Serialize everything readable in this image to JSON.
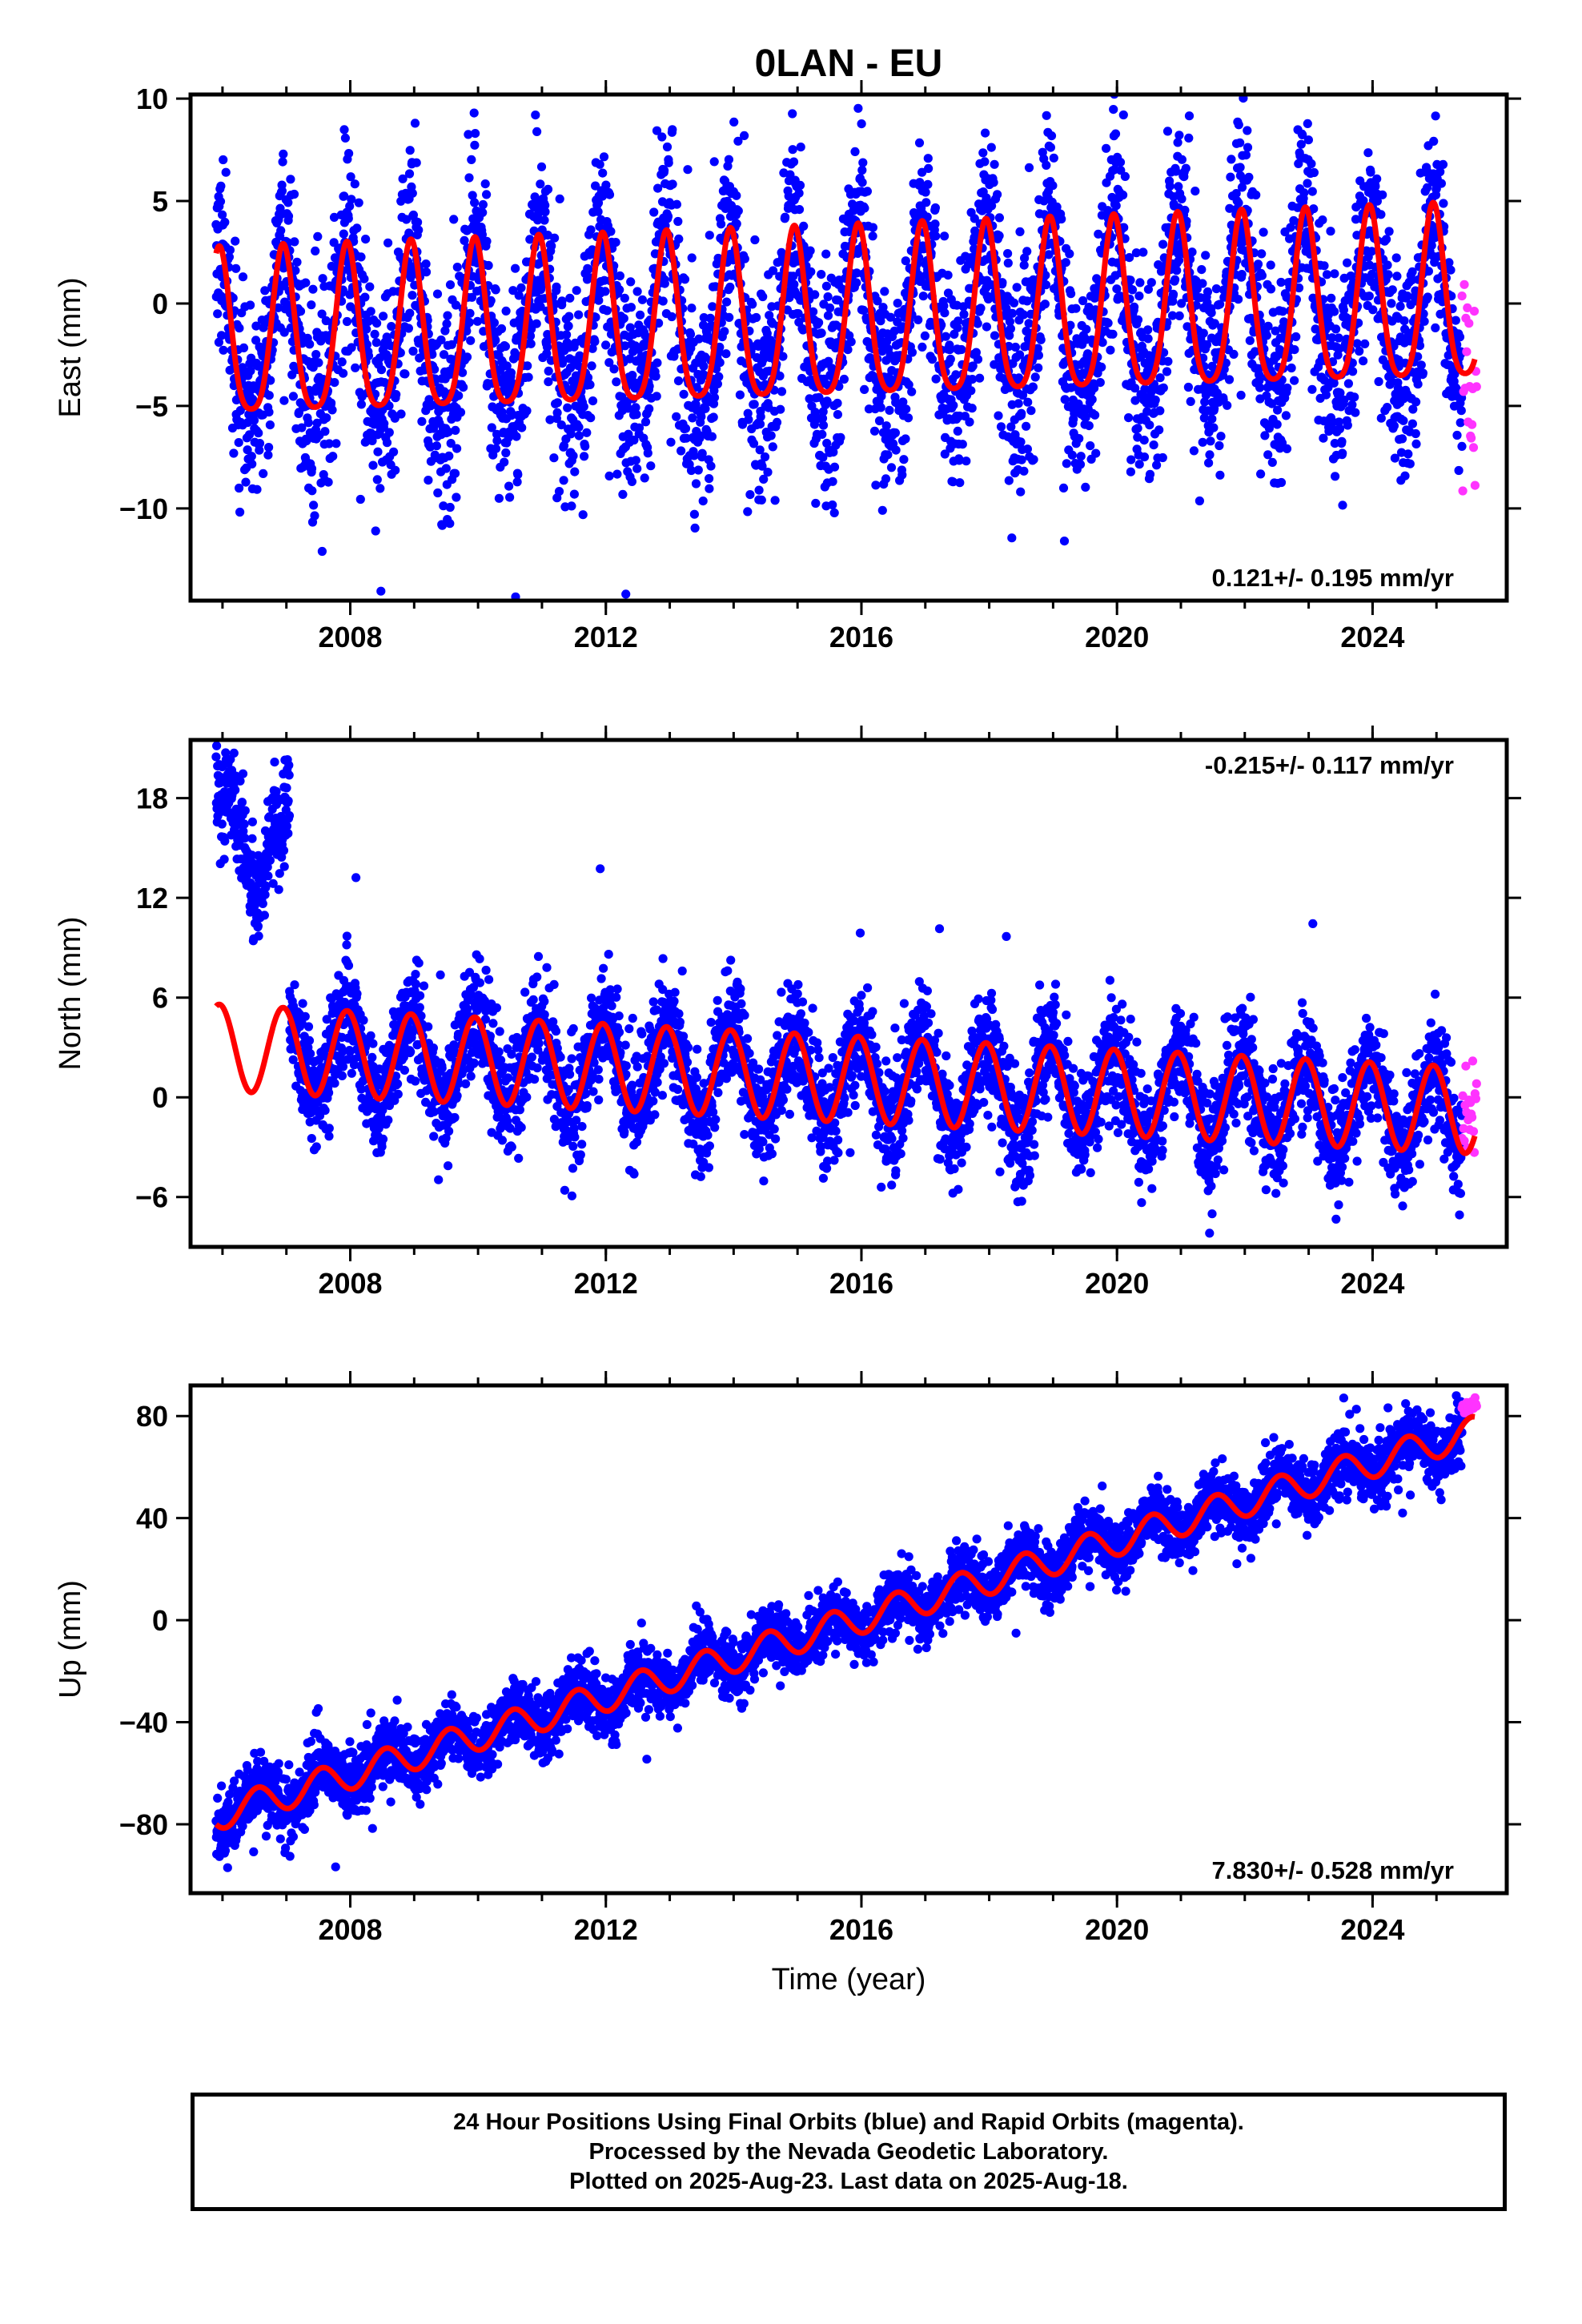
{
  "title": "0LAN - EU",
  "colors": {
    "final_orbits": "#0000ff",
    "rapid_orbits": "#ff33ff",
    "model_fit": "#ff0000",
    "axes": "#000000"
  },
  "chart_data": [
    {
      "type": "scatter",
      "component": "east",
      "ylabel": "East (mm)",
      "xlabel": "",
      "xlim": [
        2005.5,
        2026.1
      ],
      "ylim": [
        -14.5,
        10.2
      ],
      "xticks": [
        2008,
        2012,
        2016,
        2020,
        2024
      ],
      "xtick_labels": [
        "2008",
        "2012",
        "2016",
        "2020",
        "2024"
      ],
      "yticks": [
        -10,
        -5,
        0,
        5,
        10
      ],
      "ytick_labels": [
        "−10",
        "−5",
        "0",
        "5",
        "10"
      ],
      "rate_annotation": "0.121+/- 0.195 mm/yr",
      "annotation_position": "bottom-right",
      "series": [
        {
          "name": "Final Orbits (blue)",
          "kind": "points",
          "time_range": [
            2005.9,
            2025.4
          ],
          "center_mm": 0,
          "scatter_mm": 2.5
        },
        {
          "name": "Rapid Orbits (magenta)",
          "kind": "points",
          "time_range": [
            2025.4,
            2025.63
          ],
          "center_mm": -3.5,
          "scatter_mm": 2.8
        },
        {
          "name": "Model fit",
          "kind": "line",
          "x": [
            2005.9,
            2025.6
          ],
          "trend_mm": [
            -2.0,
            -0.0
          ],
          "annual_amplitude_mm": [
            4.0,
            4.2
          ],
          "phase_year_fraction": 0.95,
          "semiannual_amplitude_mm": 0.8
        }
      ]
    },
    {
      "type": "scatter",
      "component": "north",
      "ylabel": "North (mm)",
      "xlabel": "",
      "xlim": [
        2005.5,
        2026.1
      ],
      "ylim": [
        -9.0,
        21.5
      ],
      "xticks": [
        2008,
        2012,
        2016,
        2020,
        2024
      ],
      "xtick_labels": [
        "2008",
        "2012",
        "2016",
        "2020",
        "2024"
      ],
      "yticks": [
        -6,
        0,
        6,
        12,
        18
      ],
      "ytick_labels": [
        "−6",
        "0",
        "6",
        "12",
        "18"
      ],
      "rate_annotation": "-0.215+/- 0.117 mm/yr",
      "annotation_position": "top-right",
      "series": [
        {
          "name": "Final Orbits (blue) early offset segment",
          "kind": "points",
          "time_range": [
            2005.9,
            2007.05
          ],
          "level_start_mm": 19.0,
          "level_end_mm": 17.0,
          "dip_mm": 12.0,
          "scatter_mm": 1.6
        },
        {
          "name": "Final Orbits (blue)",
          "kind": "points",
          "time_range": [
            2007.05,
            2025.4
          ],
          "center_start_mm": 2.5,
          "center_end_mm": -1.5,
          "scatter_mm": 1.6
        },
        {
          "name": "Rapid Orbits (magenta)",
          "kind": "points",
          "time_range": [
            2025.4,
            2025.63
          ],
          "center_mm": -1.5,
          "scatter_mm": 1.5
        },
        {
          "name": "Model fit",
          "kind": "line",
          "x": [
            2005.9,
            2025.6
          ],
          "trend_mm": [
            3.0,
            -0.8
          ],
          "annual_amplitude_mm": [
            2.6,
            2.6
          ],
          "phase_year_fraction": 0.95
        }
      ]
    },
    {
      "type": "scatter",
      "component": "up",
      "ylabel": "Up (mm)",
      "xlabel": "Time (year)",
      "xlim": [
        2005.5,
        2026.1
      ],
      "ylim": [
        -107,
        92
      ],
      "xticks": [
        2008,
        2012,
        2016,
        2020,
        2024
      ],
      "xtick_labels": [
        "2008",
        "2012",
        "2016",
        "2020",
        "2024"
      ],
      "yticks": [
        -80,
        -40,
        0,
        40,
        80
      ],
      "ytick_labels": [
        "−80",
        "−40",
        "0",
        "40",
        "80"
      ],
      "rate_annotation": "7.830+/- 0.528 mm/yr",
      "annotation_position": "bottom-right",
      "series": [
        {
          "name": "Final Orbits (blue)",
          "kind": "points",
          "time_range": [
            2005.9,
            2025.4
          ],
          "scatter_mm": 6
        },
        {
          "name": "Rapid Orbits (magenta)",
          "kind": "points",
          "time_range": [
            2025.4,
            2025.63
          ],
          "center_mm": 84,
          "scatter_mm": 2
        },
        {
          "name": "Model fit",
          "kind": "line",
          "x": [
            2005.9,
            2025.6
          ],
          "trend_mm": [
            -76.5,
            74.0
          ],
          "annual_amplitude_mm": [
            6.0,
            6.0
          ],
          "phase_year_fraction": 0.55
        }
      ]
    }
  ],
  "footer": {
    "line1": "24 Hour Positions Using Final Orbits (blue) and Rapid Orbits (magenta).",
    "line2": "Processed by the Nevada Geodetic Laboratory.",
    "line3": "Plotted on 2025-Aug-23. Last data on 2025-Aug-18."
  }
}
